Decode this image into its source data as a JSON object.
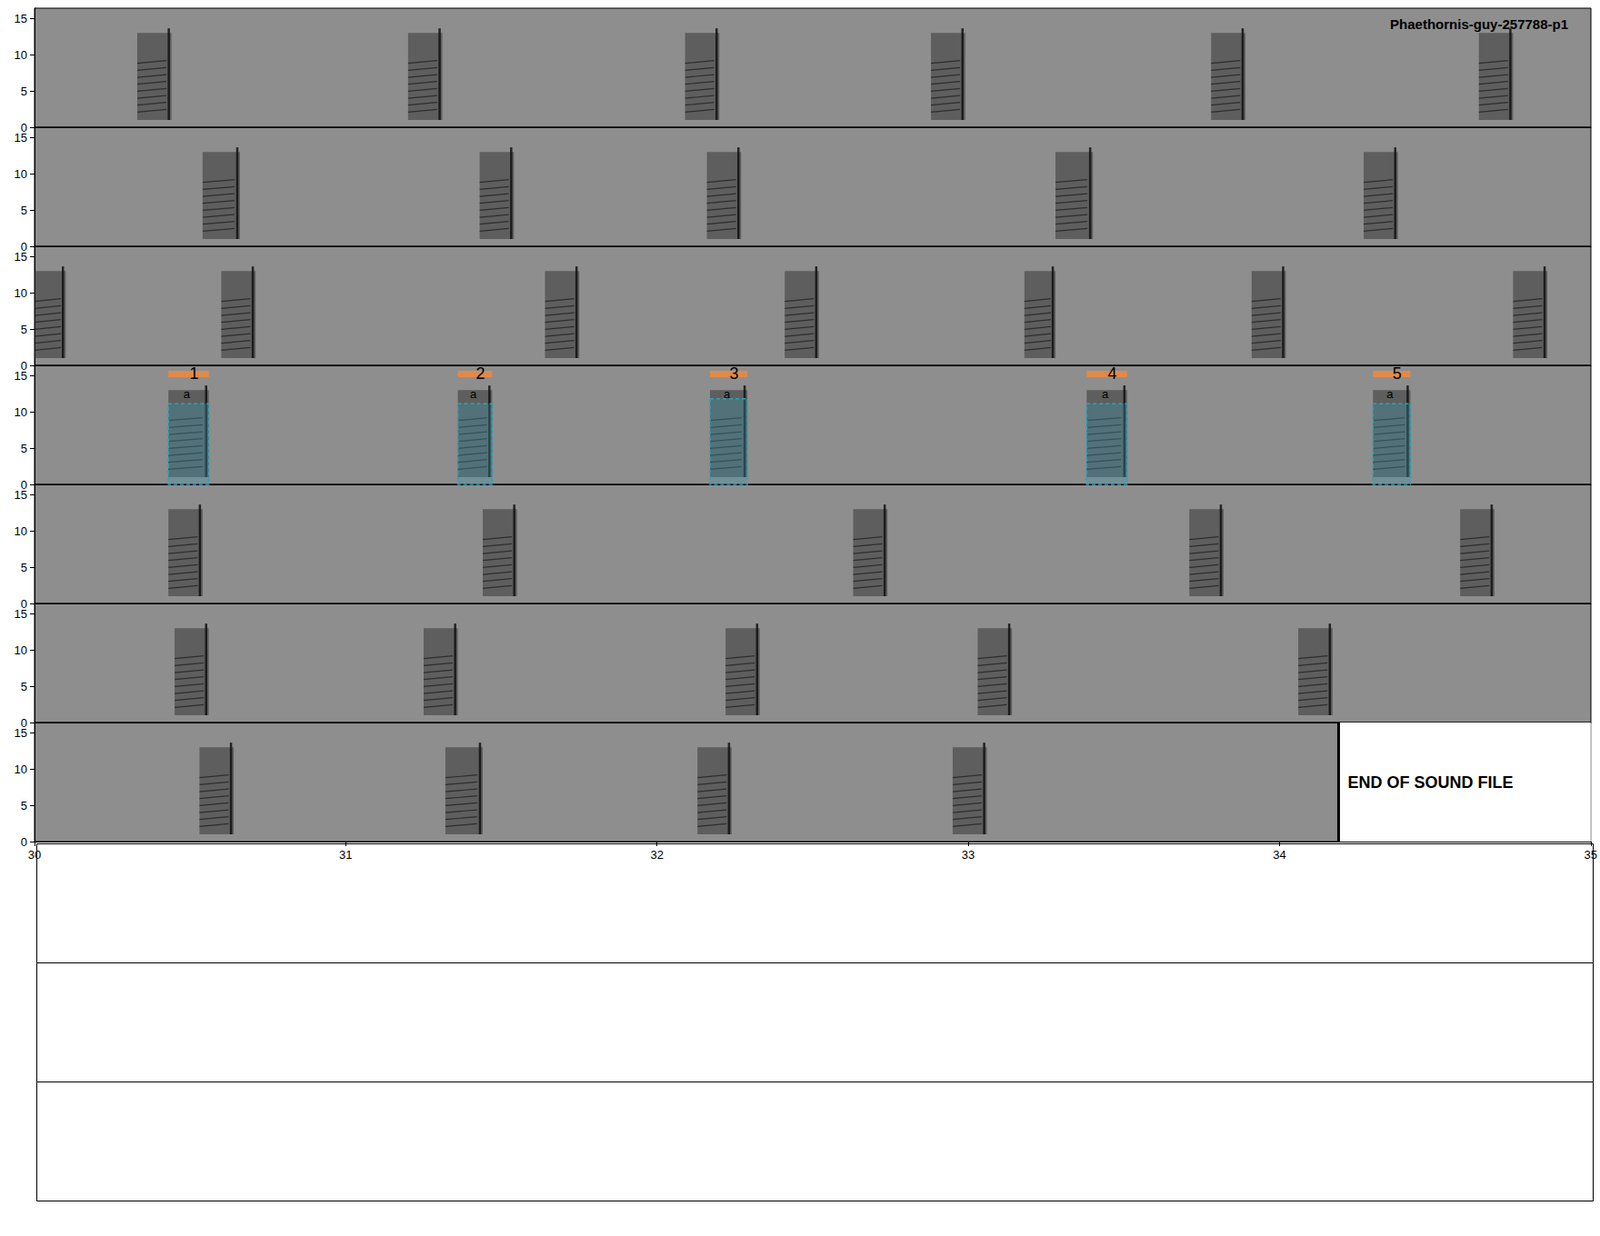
{
  "chart_data": [
    {
      "type": "spectrogram",
      "title": "Phaethornis-guy-257788-p1",
      "xlim": [
        0,
        5
      ],
      "ylim": [
        0,
        16.4
      ],
      "yticks": [
        0,
        5,
        10,
        15
      ],
      "tick_labels": "y",
      "call_freq": [
        1.0,
        13.0
      ],
      "calls": [
        {
          "start": 0.33,
          "end": 0.44
        },
        {
          "start": 1.2,
          "end": 1.31
        },
        {
          "start": 2.09,
          "end": 2.2
        },
        {
          "start": 2.88,
          "end": 2.99
        },
        {
          "start": 3.78,
          "end": 3.89
        },
        {
          "start": 4.64,
          "end": 4.75
        }
      ]
    },
    {
      "type": "spectrogram",
      "xlim": [
        5,
        10
      ],
      "ylim": [
        0,
        16.4
      ],
      "yticks": [
        0,
        5,
        10,
        15
      ],
      "tick_labels": "y",
      "call_freq": [
        1.0,
        13.0
      ],
      "calls": [
        {
          "start": 5.54,
          "end": 5.66
        },
        {
          "start": 6.43,
          "end": 6.54
        },
        {
          "start": 7.16,
          "end": 7.27
        },
        {
          "start": 8.28,
          "end": 8.4
        },
        {
          "start": 9.27,
          "end": 9.38
        }
      ]
    },
    {
      "type": "spectrogram",
      "xlim": [
        10,
        15
      ],
      "ylim": [
        0,
        16.4
      ],
      "yticks": [
        0,
        5,
        10,
        15
      ],
      "tick_labels": "y",
      "call_freq": [
        1.0,
        13.0
      ],
      "calls": [
        {
          "start": 10.0,
          "end": 10.1
        },
        {
          "start": 10.6,
          "end": 10.71
        },
        {
          "start": 11.64,
          "end": 11.75
        },
        {
          "start": 12.41,
          "end": 12.52
        },
        {
          "start": 13.18,
          "end": 13.28
        },
        {
          "start": 13.91,
          "end": 14.02
        },
        {
          "start": 14.75,
          "end": 14.86
        }
      ]
    },
    {
      "type": "spectrogram",
      "xlim": [
        15,
        20
      ],
      "ylim": [
        0,
        16.4
      ],
      "yticks": [
        0,
        5,
        10,
        15
      ],
      "tick_labels": "y",
      "call_freq": [
        1.0,
        13.0
      ],
      "calls": [
        {
          "start": 15.43,
          "end": 15.56
        },
        {
          "start": 16.36,
          "end": 16.47
        },
        {
          "start": 17.17,
          "end": 17.29
        },
        {
          "start": 18.38,
          "end": 18.51
        },
        {
          "start": 19.3,
          "end": 19.42
        }
      ],
      "selections": [
        {
          "label": "1",
          "selec_label": "a",
          "start": 15.43,
          "end": 15.56,
          "bottom_freq": 0.0,
          "top_freq": 11.1
        },
        {
          "label": "2",
          "selec_label": "a",
          "start": 16.36,
          "end": 16.47,
          "bottom_freq": 0.0,
          "top_freq": 11.1
        },
        {
          "label": "3",
          "selec_label": "a",
          "start": 17.17,
          "end": 17.29,
          "bottom_freq": 0.0,
          "top_freq": 11.8
        },
        {
          "label": "4",
          "selec_label": "a",
          "start": 18.38,
          "end": 18.51,
          "bottom_freq": 0.0,
          "top_freq": 11.1
        },
        {
          "label": "5",
          "selec_label": "a",
          "start": 19.3,
          "end": 19.42,
          "bottom_freq": 0.0,
          "top_freq": 11.1
        }
      ]
    },
    {
      "type": "spectrogram",
      "xlim": [
        20,
        25
      ],
      "ylim": [
        0,
        16.4
      ],
      "yticks": [
        0,
        5,
        10,
        15
      ],
      "tick_labels": "y",
      "call_freq": [
        1.0,
        13.0
      ],
      "calls": [
        {
          "start": 20.43,
          "end": 20.54
        },
        {
          "start": 21.44,
          "end": 21.55
        },
        {
          "start": 22.63,
          "end": 22.74
        },
        {
          "start": 23.71,
          "end": 23.82
        },
        {
          "start": 24.58,
          "end": 24.69
        }
      ]
    },
    {
      "type": "spectrogram",
      "xlim": [
        25,
        30
      ],
      "ylim": [
        0,
        16.4
      ],
      "yticks": [
        0,
        5,
        10,
        15
      ],
      "tick_labels": "y",
      "call_freq": [
        1.0,
        13.0
      ],
      "calls": [
        {
          "start": 25.45,
          "end": 25.56
        },
        {
          "start": 26.25,
          "end": 26.36
        },
        {
          "start": 27.22,
          "end": 27.33
        },
        {
          "start": 28.03,
          "end": 28.14
        },
        {
          "start": 29.06,
          "end": 29.17
        }
      ]
    },
    {
      "type": "spectrogram",
      "xlim": [
        30,
        35
      ],
      "ylim": [
        0,
        16.4
      ],
      "xticks": [
        30,
        31,
        32,
        33,
        34,
        35
      ],
      "yticks": [
        0,
        5,
        10,
        15
      ],
      "call_freq": [
        1.0,
        13.0
      ],
      "calls": [
        {
          "start": 30.53,
          "end": 30.64
        },
        {
          "start": 31.32,
          "end": 31.44
        },
        {
          "start": 32.13,
          "end": 32.24
        },
        {
          "start": 32.95,
          "end": 33.06
        }
      ],
      "end_of_file": 34.19,
      "end_label": "END OF SOUND FILE"
    }
  ]
}
